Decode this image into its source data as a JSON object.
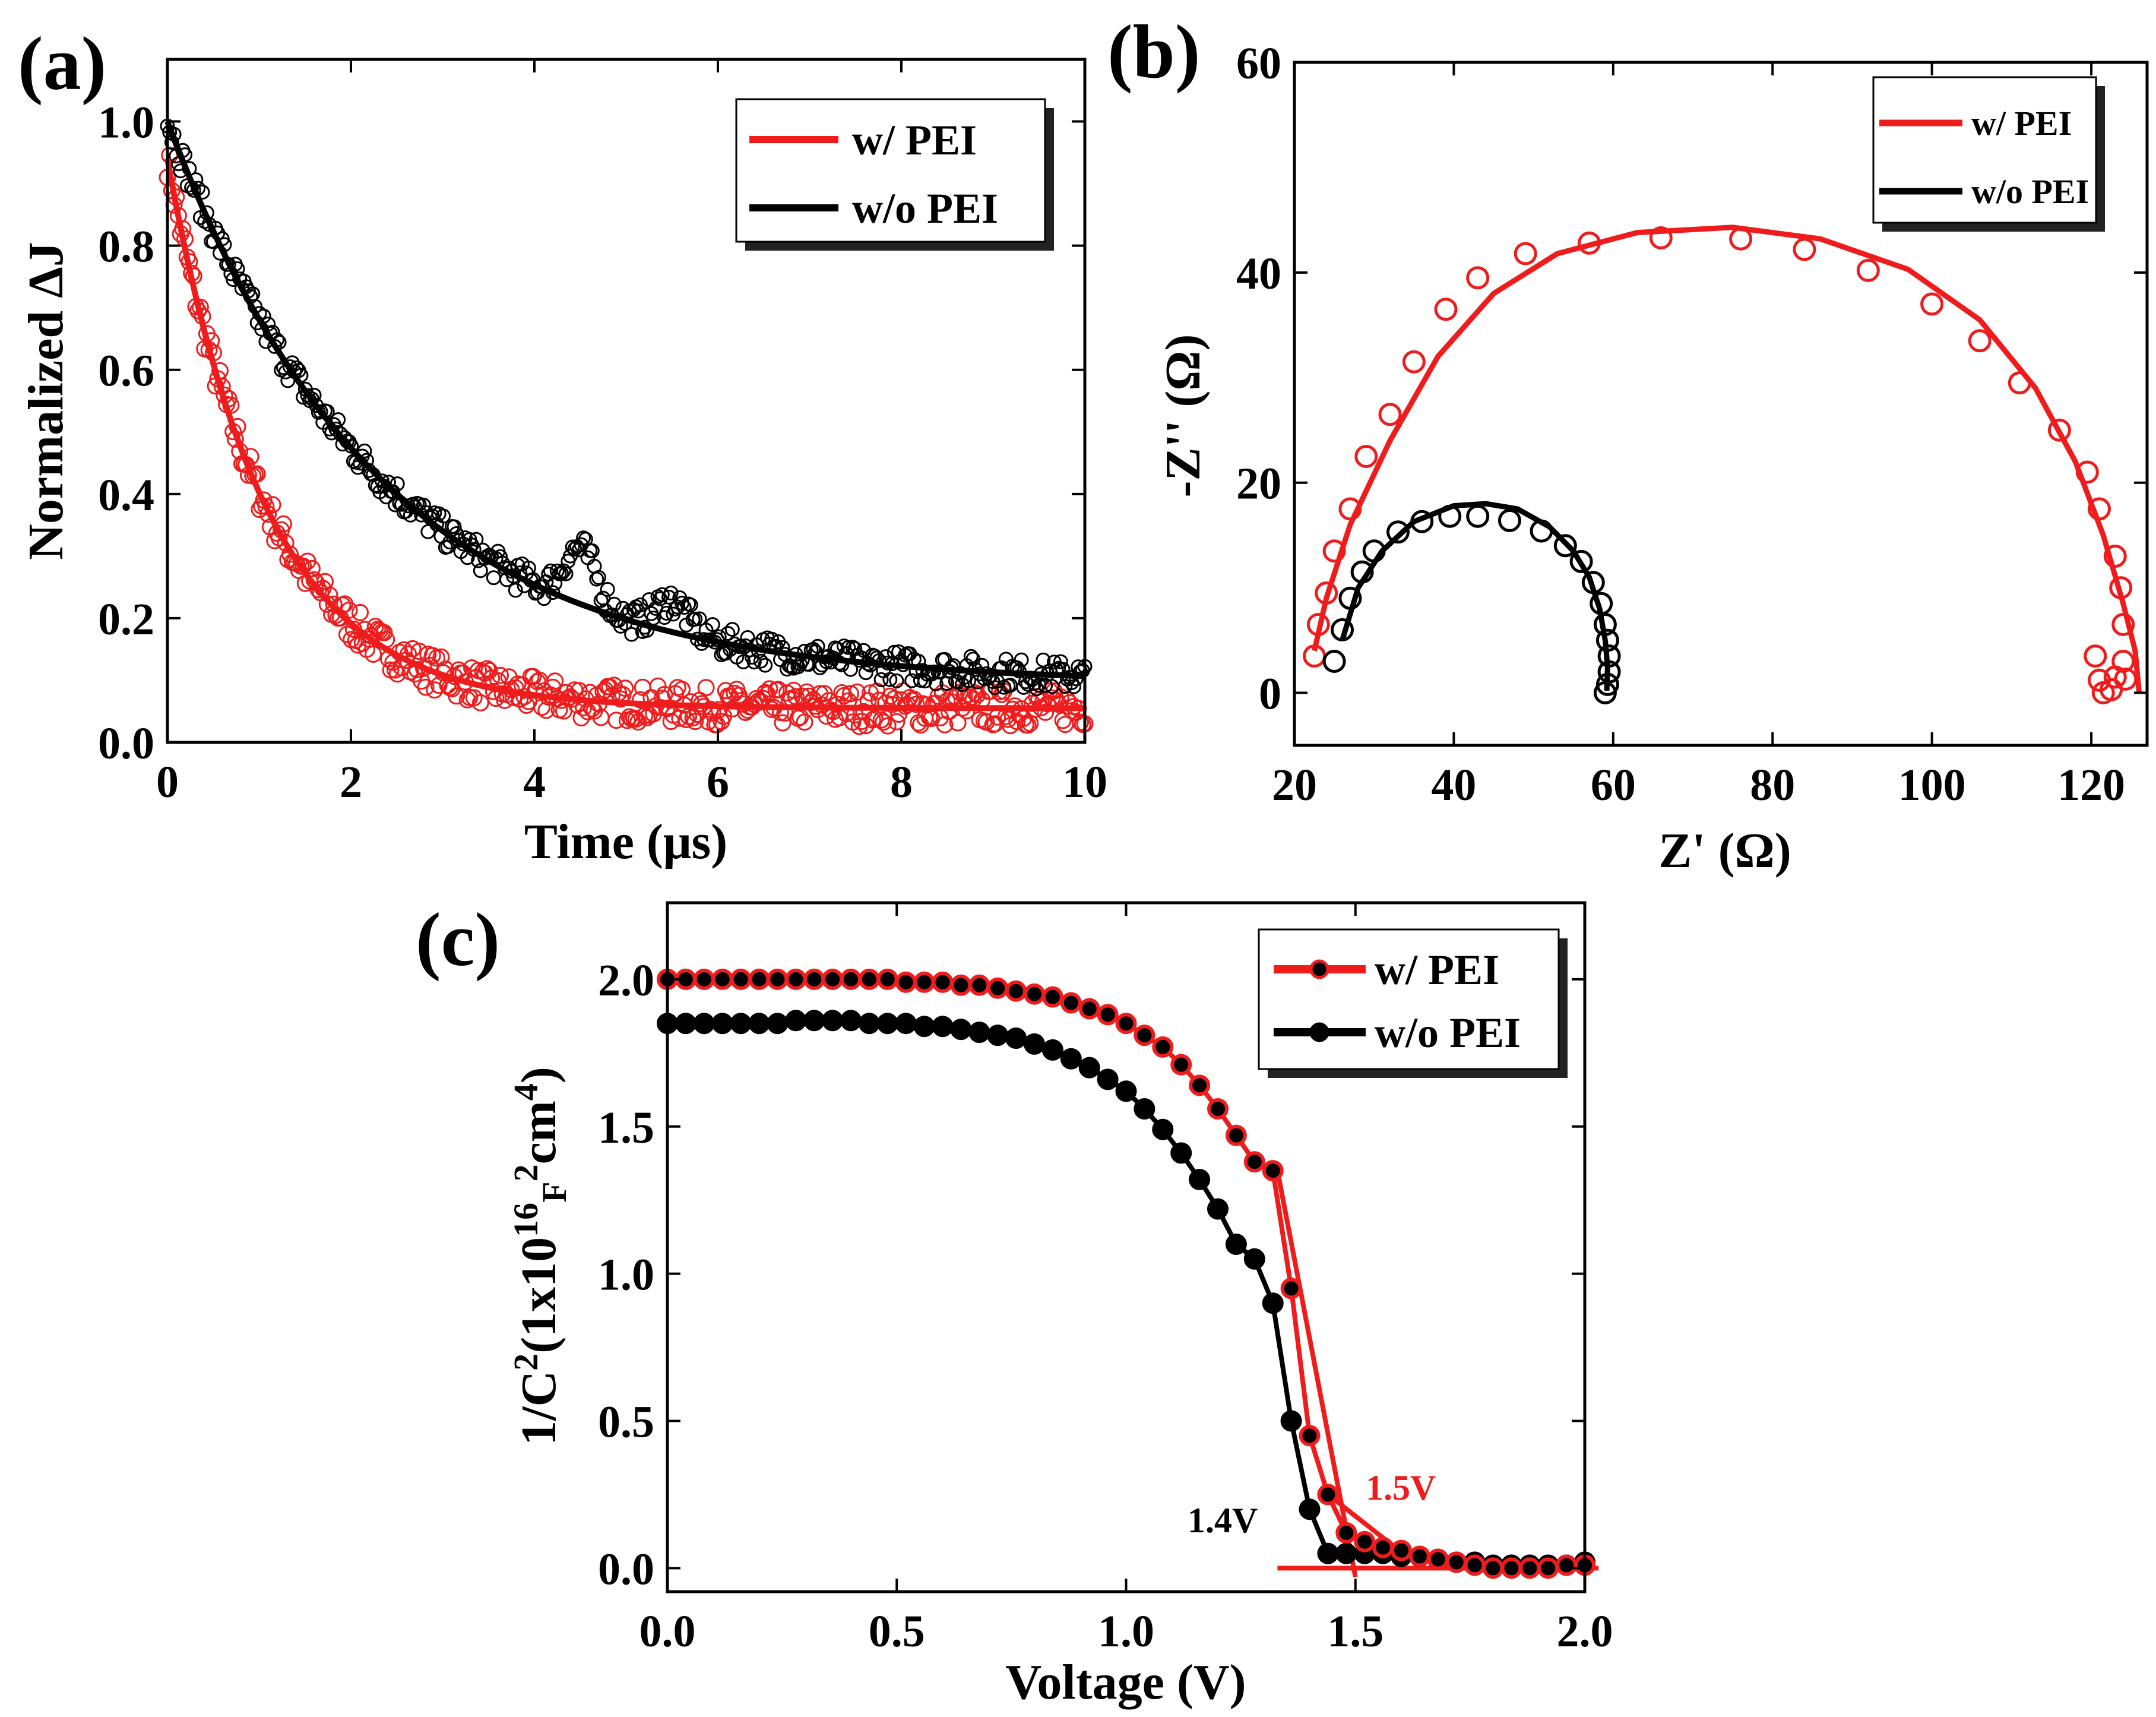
{
  "colors": {
    "red": "#ee1c1c",
    "black": "#000000"
  },
  "chart_data": [
    {
      "type": "scatter",
      "panel_label": "(a)",
      "xlabel": "Time (μs)",
      "ylabel": "Normalized ΔJ",
      "xlim": [
        0,
        10
      ],
      "ylim": [
        0,
        1.1
      ],
      "xticks": [
        "0",
        "2",
        "4",
        "6",
        "8",
        "10"
      ],
      "yticks": [
        "0.0",
        "0.2",
        "0.4",
        "0.6",
        "0.8",
        "1.0"
      ],
      "legend": [
        "w/ PEI",
        "w/o PEI"
      ],
      "series": [
        {
          "name": "w/ PEI",
          "color": "#ee1c1c",
          "model": "exponential decay fit",
          "fit": {
            "y0": 0.055,
            "A": 0.885,
            "tau": 1.07
          },
          "noise": 0.03
        },
        {
          "name": "w/o PEI",
          "color": "#000000",
          "model": "exponential decay fit",
          "fit": {
            "y0": 0.095,
            "A": 0.905,
            "tau": 2.3
          },
          "noise": 0.025,
          "bumps": [
            {
              "x": 4.5,
              "dy": 0.09
            },
            {
              "x": 5.5,
              "dy": 0.05
            }
          ]
        }
      ]
    },
    {
      "type": "scatter",
      "panel_label": "(b)",
      "xlabel": "Z' (Ω)",
      "ylabel": "-Z'' (Ω)",
      "xlim": [
        20,
        127
      ],
      "ylim": [
        -5,
        60
      ],
      "xticks": [
        "20",
        "40",
        "60",
        "80",
        "100",
        "120"
      ],
      "yticks": [
        "0",
        "20",
        "40",
        "60"
      ],
      "legend": [
        "w/ PEI",
        "w/o PEI"
      ],
      "series": [
        {
          "name": "w/ PEI",
          "color": "#ee1c1c",
          "markers": [
            [
              22.5,
              3.5
            ],
            [
              23,
              6.5
            ],
            [
              24,
              9.5
            ],
            [
              25,
              13.5
            ],
            [
              27,
              17.5
            ],
            [
              29,
              22.5
            ],
            [
              32,
              26.5
            ],
            [
              35,
              31.5
            ],
            [
              39,
              36.5
            ],
            [
              43,
              39.5
            ],
            [
              49,
              41.8
            ],
            [
              57,
              42.8
            ],
            [
              66,
              43.3
            ],
            [
              76,
              43.2
            ],
            [
              84,
              42.2
            ],
            [
              92,
              40.2
            ],
            [
              100,
              37
            ],
            [
              106,
              33.5
            ],
            [
              111,
              29.5
            ],
            [
              116,
              25
            ],
            [
              119.5,
              21
            ],
            [
              121,
              17.5
            ],
            [
              123,
              13
            ],
            [
              123.7,
              10
            ],
            [
              124,
              6.5
            ],
            [
              124,
              3
            ],
            [
              120.5,
              3.5
            ],
            [
              121,
              1.2
            ],
            [
              121.5,
              0
            ],
            [
              122.5,
              0.3
            ],
            [
              123,
              1.5
            ],
            [
              124.3,
              1.3
            ]
          ],
          "fit": [
            [
              22.5,
              4
            ],
            [
              24,
              9
            ],
            [
              27,
              16
            ],
            [
              32,
              24
            ],
            [
              38,
              32
            ],
            [
              45,
              38
            ],
            [
              53,
              41.8
            ],
            [
              63,
              43.8
            ],
            [
              75,
              44.3
            ],
            [
              86,
              43.2
            ],
            [
              97,
              40.3
            ],
            [
              106,
              35.5
            ],
            [
              113,
              29
            ],
            [
              118,
              22
            ],
            [
              121.5,
              15
            ],
            [
              124,
              8.5
            ],
            [
              125.5,
              4
            ],
            [
              126,
              0
            ]
          ]
        },
        {
          "name": "w/o PEI",
          "color": "#000000",
          "markers": [
            [
              25,
              3
            ],
            [
              26,
              6
            ],
            [
              27,
              9
            ],
            [
              28.5,
              11.5
            ],
            [
              30,
              13.5
            ],
            [
              33,
              15.3
            ],
            [
              36,
              16.3
            ],
            [
              39.5,
              16.8
            ],
            [
              43,
              16.8
            ],
            [
              47,
              16.4
            ],
            [
              51,
              15.4
            ],
            [
              54,
              14
            ],
            [
              56,
              12.5
            ],
            [
              57.5,
              10.5
            ],
            [
              58.5,
              8.5
            ],
            [
              59,
              6.5
            ],
            [
              59.3,
              5
            ],
            [
              59.5,
              3.5
            ],
            [
              59.5,
              2
            ],
            [
              59.3,
              0.8
            ],
            [
              59,
              0
            ]
          ],
          "fit": [
            [
              26,
              5
            ],
            [
              28,
              10
            ],
            [
              31,
              13.5
            ],
            [
              35,
              16.3
            ],
            [
              40,
              17.8
            ],
            [
              44,
              18
            ],
            [
              48,
              17.5
            ],
            [
              52,
              15.8
            ],
            [
              55,
              13.5
            ],
            [
              57,
              11
            ],
            [
              58.3,
              8
            ],
            [
              59,
              5
            ],
            [
              59.3,
              2.5
            ],
            [
              59.2,
              0.2
            ]
          ]
        }
      ]
    },
    {
      "type": "line",
      "panel_label": "(c)",
      "xlabel": "Voltage (V)",
      "ylabel": "1/C2(1x1016F2cm4)",
      "ylabel_parts": {
        "a": "1/C",
        "s1": "2",
        "b": "(1x10",
        "s2": "16",
        "c": "F",
        "s3": "2",
        "d": "cm",
        "s4": "4",
        "e": ")"
      },
      "xlim": [
        0,
        2.0
      ],
      "ylim": [
        -0.08,
        2.26
      ],
      "xticks": [
        "0.0",
        "0.5",
        "1.0",
        "1.5",
        "2.0"
      ],
      "yticks": [
        "0.0",
        "0.5",
        "1.0",
        "1.5",
        "2.0"
      ],
      "legend": [
        "w/ PEI",
        "w/o PEI"
      ],
      "annotations": [
        {
          "text": "1.5V",
          "color": "#ee1c1c"
        },
        {
          "text": "1.4V",
          "color": "#000000"
        }
      ],
      "series": [
        {
          "name": "w/ PEI",
          "color": "#ee1c1c",
          "points": [
            [
              0,
              2.0
            ],
            [
              0.04,
              2.0
            ],
            [
              0.08,
              2.0
            ],
            [
              0.12,
              2.0
            ],
            [
              0.16,
              2.0
            ],
            [
              0.2,
              2.0
            ],
            [
              0.24,
              2.0
            ],
            [
              0.28,
              2.0
            ],
            [
              0.32,
              2.0
            ],
            [
              0.36,
              2.0
            ],
            [
              0.4,
              2.0
            ],
            [
              0.44,
              2.0
            ],
            [
              0.48,
              2.0
            ],
            [
              0.52,
              1.99
            ],
            [
              0.56,
              1.99
            ],
            [
              0.6,
              1.99
            ],
            [
              0.64,
              1.98
            ],
            [
              0.68,
              1.98
            ],
            [
              0.72,
              1.97
            ],
            [
              0.76,
              1.96
            ],
            [
              0.8,
              1.95
            ],
            [
              0.84,
              1.94
            ],
            [
              0.88,
              1.92
            ],
            [
              0.92,
              1.9
            ],
            [
              0.96,
              1.88
            ],
            [
              1.0,
              1.85
            ],
            [
              1.04,
              1.81
            ],
            [
              1.08,
              1.77
            ],
            [
              1.12,
              1.71
            ],
            [
              1.16,
              1.64
            ],
            [
              1.2,
              1.56
            ],
            [
              1.24,
              1.47
            ],
            [
              1.28,
              1.38
            ],
            [
              1.32,
              1.35
            ],
            [
              1.36,
              0.95
            ],
            [
              1.4,
              0.45
            ],
            [
              1.44,
              0.25
            ],
            [
              1.48,
              0.12
            ],
            [
              1.52,
              0.09
            ],
            [
              1.56,
              0.07
            ],
            [
              1.6,
              0.06
            ],
            [
              1.64,
              0.04
            ],
            [
              1.68,
              0.03
            ],
            [
              1.72,
              0.02
            ],
            [
              1.76,
              0.01
            ],
            [
              1.8,
              0.0
            ],
            [
              1.84,
              0.0
            ],
            [
              1.88,
              0.0
            ],
            [
              1.92,
              0.0
            ],
            [
              1.96,
              0.01
            ],
            [
              2.0,
              0.01
            ]
          ],
          "tangents": [
            [
              [
                1.33,
                1.35
              ],
              [
                1.5,
                -0.03
              ]
            ],
            [
              [
                1.44,
                0.25
              ],
              [
                1.62,
                0.03
              ]
            ],
            [
              [
                1.33,
                0.0
              ],
              [
                2.03,
                0.0
              ]
            ]
          ]
        },
        {
          "name": "w/o PEI",
          "color": "#000000",
          "points": [
            [
              0,
              1.85
            ],
            [
              0.04,
              1.85
            ],
            [
              0.08,
              1.85
            ],
            [
              0.12,
              1.85
            ],
            [
              0.16,
              1.85
            ],
            [
              0.2,
              1.85
            ],
            [
              0.24,
              1.85
            ],
            [
              0.28,
              1.86
            ],
            [
              0.32,
              1.86
            ],
            [
              0.36,
              1.86
            ],
            [
              0.4,
              1.86
            ],
            [
              0.44,
              1.85
            ],
            [
              0.48,
              1.85
            ],
            [
              0.52,
              1.85
            ],
            [
              0.56,
              1.84
            ],
            [
              0.6,
              1.84
            ],
            [
              0.64,
              1.83
            ],
            [
              0.68,
              1.82
            ],
            [
              0.72,
              1.81
            ],
            [
              0.76,
              1.8
            ],
            [
              0.8,
              1.78
            ],
            [
              0.84,
              1.76
            ],
            [
              0.88,
              1.73
            ],
            [
              0.92,
              1.7
            ],
            [
              0.96,
              1.66
            ],
            [
              1.0,
              1.62
            ],
            [
              1.04,
              1.56
            ],
            [
              1.08,
              1.49
            ],
            [
              1.12,
              1.41
            ],
            [
              1.16,
              1.32
            ],
            [
              1.2,
              1.22
            ],
            [
              1.24,
              1.1
            ],
            [
              1.28,
              1.05
            ],
            [
              1.32,
              0.9
            ],
            [
              1.36,
              0.5
            ],
            [
              1.4,
              0.2
            ],
            [
              1.44,
              0.05
            ],
            [
              1.48,
              0.05
            ],
            [
              1.52,
              0.05
            ],
            [
              1.56,
              0.05
            ],
            [
              1.6,
              0.04
            ],
            [
              1.64,
              0.04
            ],
            [
              1.68,
              0.03
            ],
            [
              1.72,
              0.02
            ],
            [
              1.76,
              0.02
            ],
            [
              1.8,
              0.01
            ],
            [
              1.84,
              0.01
            ],
            [
              1.88,
              0.01
            ],
            [
              1.92,
              0.01
            ],
            [
              1.96,
              0.01
            ],
            [
              2.0,
              0.02
            ]
          ]
        }
      ]
    }
  ]
}
